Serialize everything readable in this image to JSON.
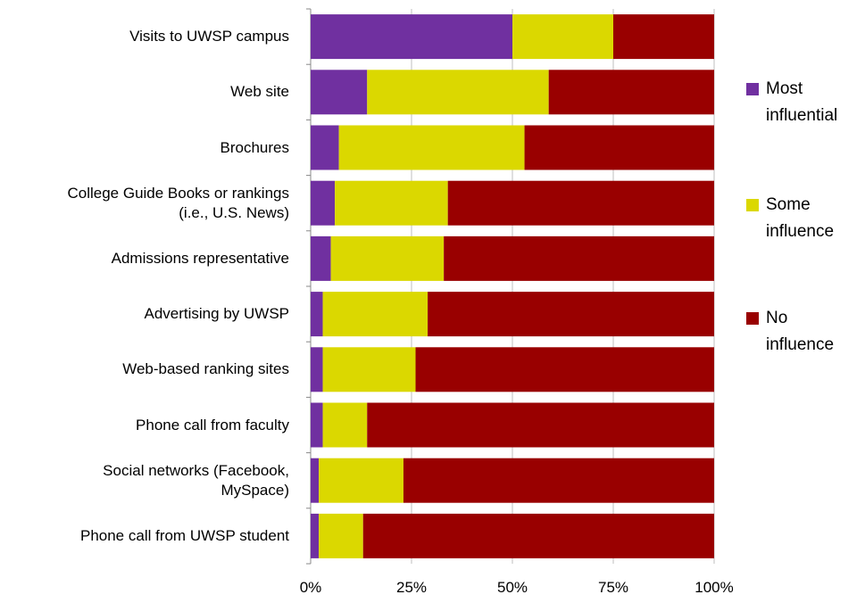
{
  "chart_data": {
    "type": "stacked-bar-horizontal",
    "categories": [
      "Visits to UWSP campus",
      "Web site",
      "Brochures",
      "College Guide Books or rankings\n(i.e., U.S. News)",
      "Admissions representative",
      "Advertising by UWSP",
      "Web-based ranking sites",
      "Phone call from faculty",
      "Social networks (Facebook,\nMySpace)",
      "Phone call from UWSP student"
    ],
    "series": [
      {
        "name": "Most\ninfluential",
        "color": "#7030a0",
        "values": [
          50,
          14,
          7,
          6,
          5,
          3,
          3,
          3,
          2,
          2
        ]
      },
      {
        "name": "Some\ninfluence",
        "color": "#dbd800",
        "values": [
          25,
          45,
          46,
          28,
          28,
          26,
          23,
          11,
          21,
          11
        ]
      },
      {
        "name": "No\ninfluence",
        "color": "#990000",
        "values": [
          25,
          41,
          47,
          66,
          67,
          71,
          74,
          86,
          77,
          87
        ]
      }
    ],
    "xlim": [
      0,
      100
    ],
    "xticks": [
      {
        "value": 0,
        "label": "0%"
      },
      {
        "value": 25,
        "label": "25%"
      },
      {
        "value": 50,
        "label": "50%"
      },
      {
        "value": 75,
        "label": "75%"
      },
      {
        "value": 100,
        "label": "100%"
      }
    ],
    "grid": true,
    "legend": "right"
  }
}
